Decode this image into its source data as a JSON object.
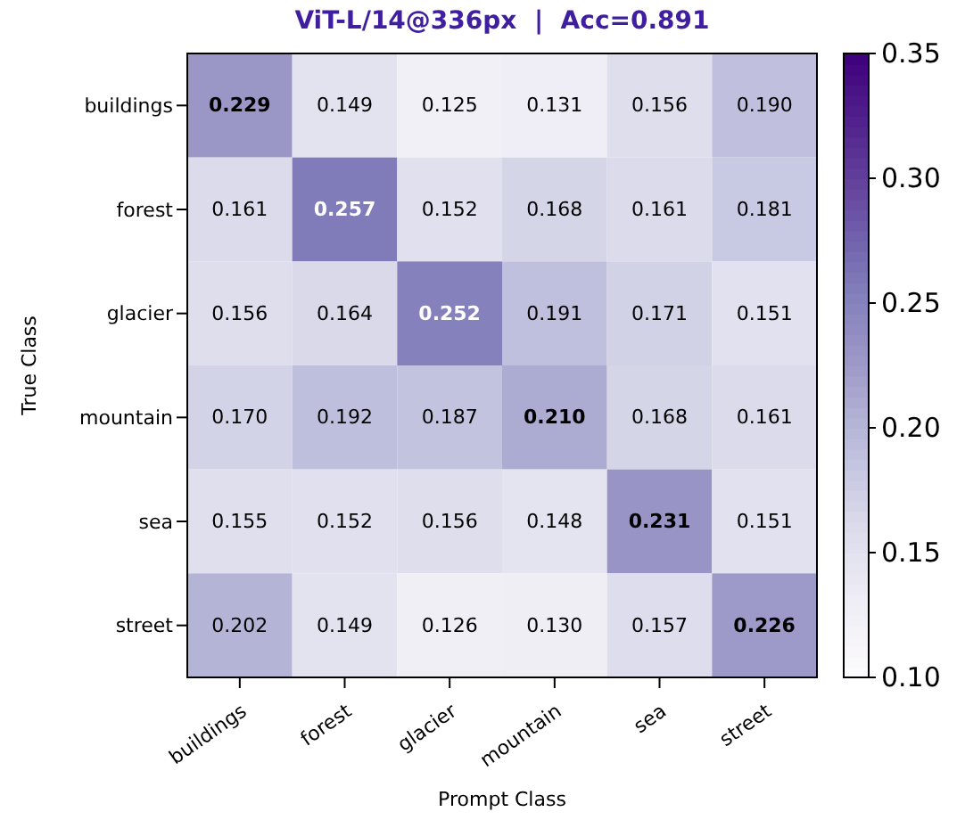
{
  "chart_data": {
    "type": "heatmap",
    "title": "ViT-L/14@336px  |  Acc=0.891",
    "xlabel": "Prompt Class",
    "ylabel": "True Class",
    "categories": [
      "buildings",
      "forest",
      "glacier",
      "mountain",
      "sea",
      "street"
    ],
    "y_categories": [
      "buildings",
      "forest",
      "glacier",
      "mountain",
      "sea",
      "street"
    ],
    "cells": [
      [
        0.229,
        0.149,
        0.125,
        0.131,
        0.156,
        0.19
      ],
      [
        0.161,
        0.257,
        0.152,
        0.168,
        0.161,
        0.181
      ],
      [
        0.156,
        0.164,
        0.252,
        0.191,
        0.171,
        0.151
      ],
      [
        0.17,
        0.192,
        0.187,
        0.21,
        0.168,
        0.161
      ],
      [
        0.155,
        0.152,
        0.156,
        0.148,
        0.231,
        0.151
      ],
      [
        0.202,
        0.149,
        0.126,
        0.13,
        0.157,
        0.226
      ]
    ],
    "cell_labels": [
      [
        "0.229",
        "0.149",
        "0.125",
        "0.131",
        "0.156",
        "0.190"
      ],
      [
        "0.161",
        "0.257",
        "0.152",
        "0.168",
        "0.161",
        "0.181"
      ],
      [
        "0.156",
        "0.164",
        "0.252",
        "0.191",
        "0.171",
        "0.151"
      ],
      [
        "0.170",
        "0.192",
        "0.187",
        "0.210",
        "0.168",
        "0.161"
      ],
      [
        "0.155",
        "0.152",
        "0.156",
        "0.148",
        "0.231",
        "0.151"
      ],
      [
        "0.202",
        "0.149",
        "0.126",
        "0.130",
        "0.157",
        "0.226"
      ]
    ],
    "clim": [
      0.1,
      0.35
    ],
    "cticks": [
      {
        "value": 0.1,
        "label": "0.10"
      },
      0.15,
      {
        "value": 0.2,
        "label": "0.20"
      },
      0.25,
      {
        "value": 0.3,
        "label": "0.30"
      },
      0.35
    ]
  }
}
